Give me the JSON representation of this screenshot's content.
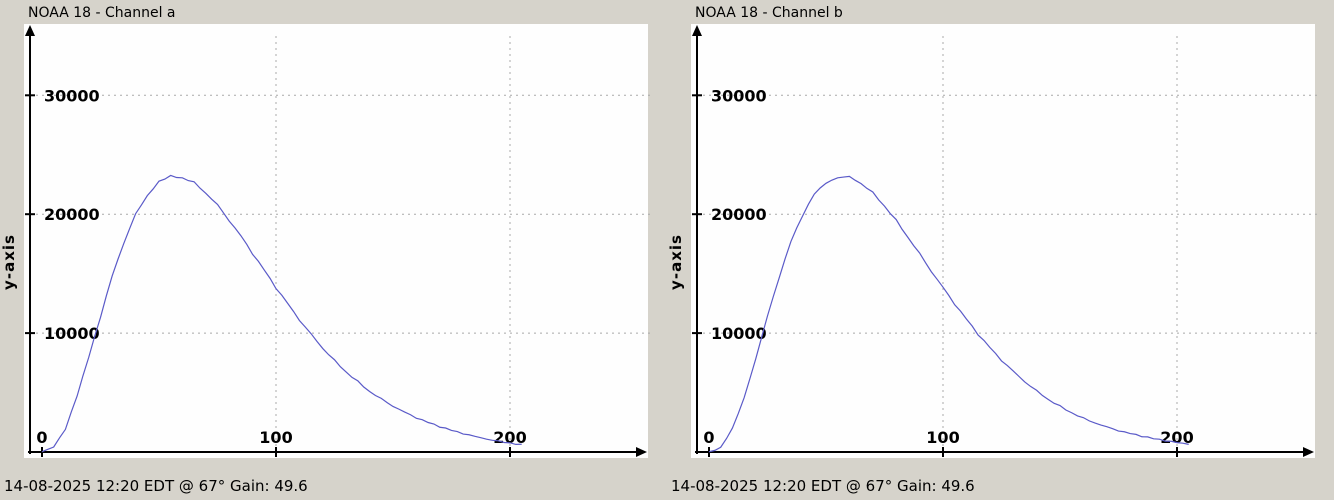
{
  "app": {
    "background": "#d6d3cb",
    "plot_background": "#fefefe",
    "grid_color": "#a9a9a9"
  },
  "chart_data": [
    {
      "type": "line",
      "title": "NOAA 18 - Channel a",
      "caption": "14-08-2025 12:20 EDT @ 67° Gain: 49.6",
      "xlabel": "",
      "ylabel": "y-axis",
      "x_ticks": [
        0,
        100,
        200
      ],
      "y_ticks": [
        10000,
        20000,
        30000
      ],
      "xlim": [
        0,
        255
      ],
      "ylim": [
        0,
        35000
      ],
      "grid": true,
      "legend": "none",
      "line_color": "#5a5ac8",
      "x": [
        0,
        5,
        10,
        15,
        20,
        25,
        30,
        35,
        40,
        45,
        50,
        55,
        60,
        65,
        70,
        75,
        80,
        85,
        90,
        95,
        100,
        105,
        110,
        115,
        120,
        125,
        130,
        135,
        140,
        145,
        150,
        155,
        160,
        165,
        170,
        175,
        180,
        185,
        190,
        195,
        200,
        205
      ],
      "y": [
        30,
        420,
        1900,
        4700,
        7980,
        11320,
        14820,
        17560,
        20040,
        21560,
        22780,
        23260,
        23060,
        22730,
        21760,
        20820,
        19420,
        18190,
        16620,
        15300,
        13740,
        12500,
        11060,
        9950,
        8700,
        7760,
        6720,
        5980,
        5090,
        4510,
        3830,
        3360,
        2830,
        2480,
        2080,
        1810,
        1510,
        1320,
        1080,
        940,
        770,
        650
      ]
    },
    {
      "type": "line",
      "title": "NOAA 18 - Channel b",
      "caption": "14-08-2025 12:20 EDT @ 67° Gain: 49.6",
      "xlabel": "",
      "ylabel": "y-axis",
      "x_ticks": [
        0,
        100,
        200
      ],
      "y_ticks": [
        10000,
        20000,
        30000
      ],
      "xlim": [
        0,
        255
      ],
      "ylim": [
        0,
        35000
      ],
      "grid": true,
      "legend": "none",
      "line_color": "#5a5ac8",
      "x": [
        0,
        5,
        10,
        15,
        20,
        25,
        30,
        35,
        40,
        45,
        50,
        55,
        60,
        65,
        70,
        75,
        80,
        85,
        90,
        95,
        100,
        105,
        110,
        115,
        120,
        125,
        130,
        135,
        140,
        145,
        150,
        155,
        160,
        165,
        170,
        175,
        180,
        185,
        190,
        195,
        200,
        205
      ],
      "y": [
        20,
        400,
        2010,
        4560,
        7850,
        11450,
        14650,
        17700,
        19850,
        21690,
        22600,
        23060,
        23180,
        22570,
        21870,
        20680,
        19550,
        18050,
        16740,
        15160,
        13860,
        12380,
        11190,
        9830,
        8800,
        7660,
        6820,
        5880,
        5190,
        4420,
        3910,
        3300,
        2890,
        2430,
        2130,
        1760,
        1550,
        1280,
        1110,
        910,
        790,
        640
      ]
    }
  ]
}
